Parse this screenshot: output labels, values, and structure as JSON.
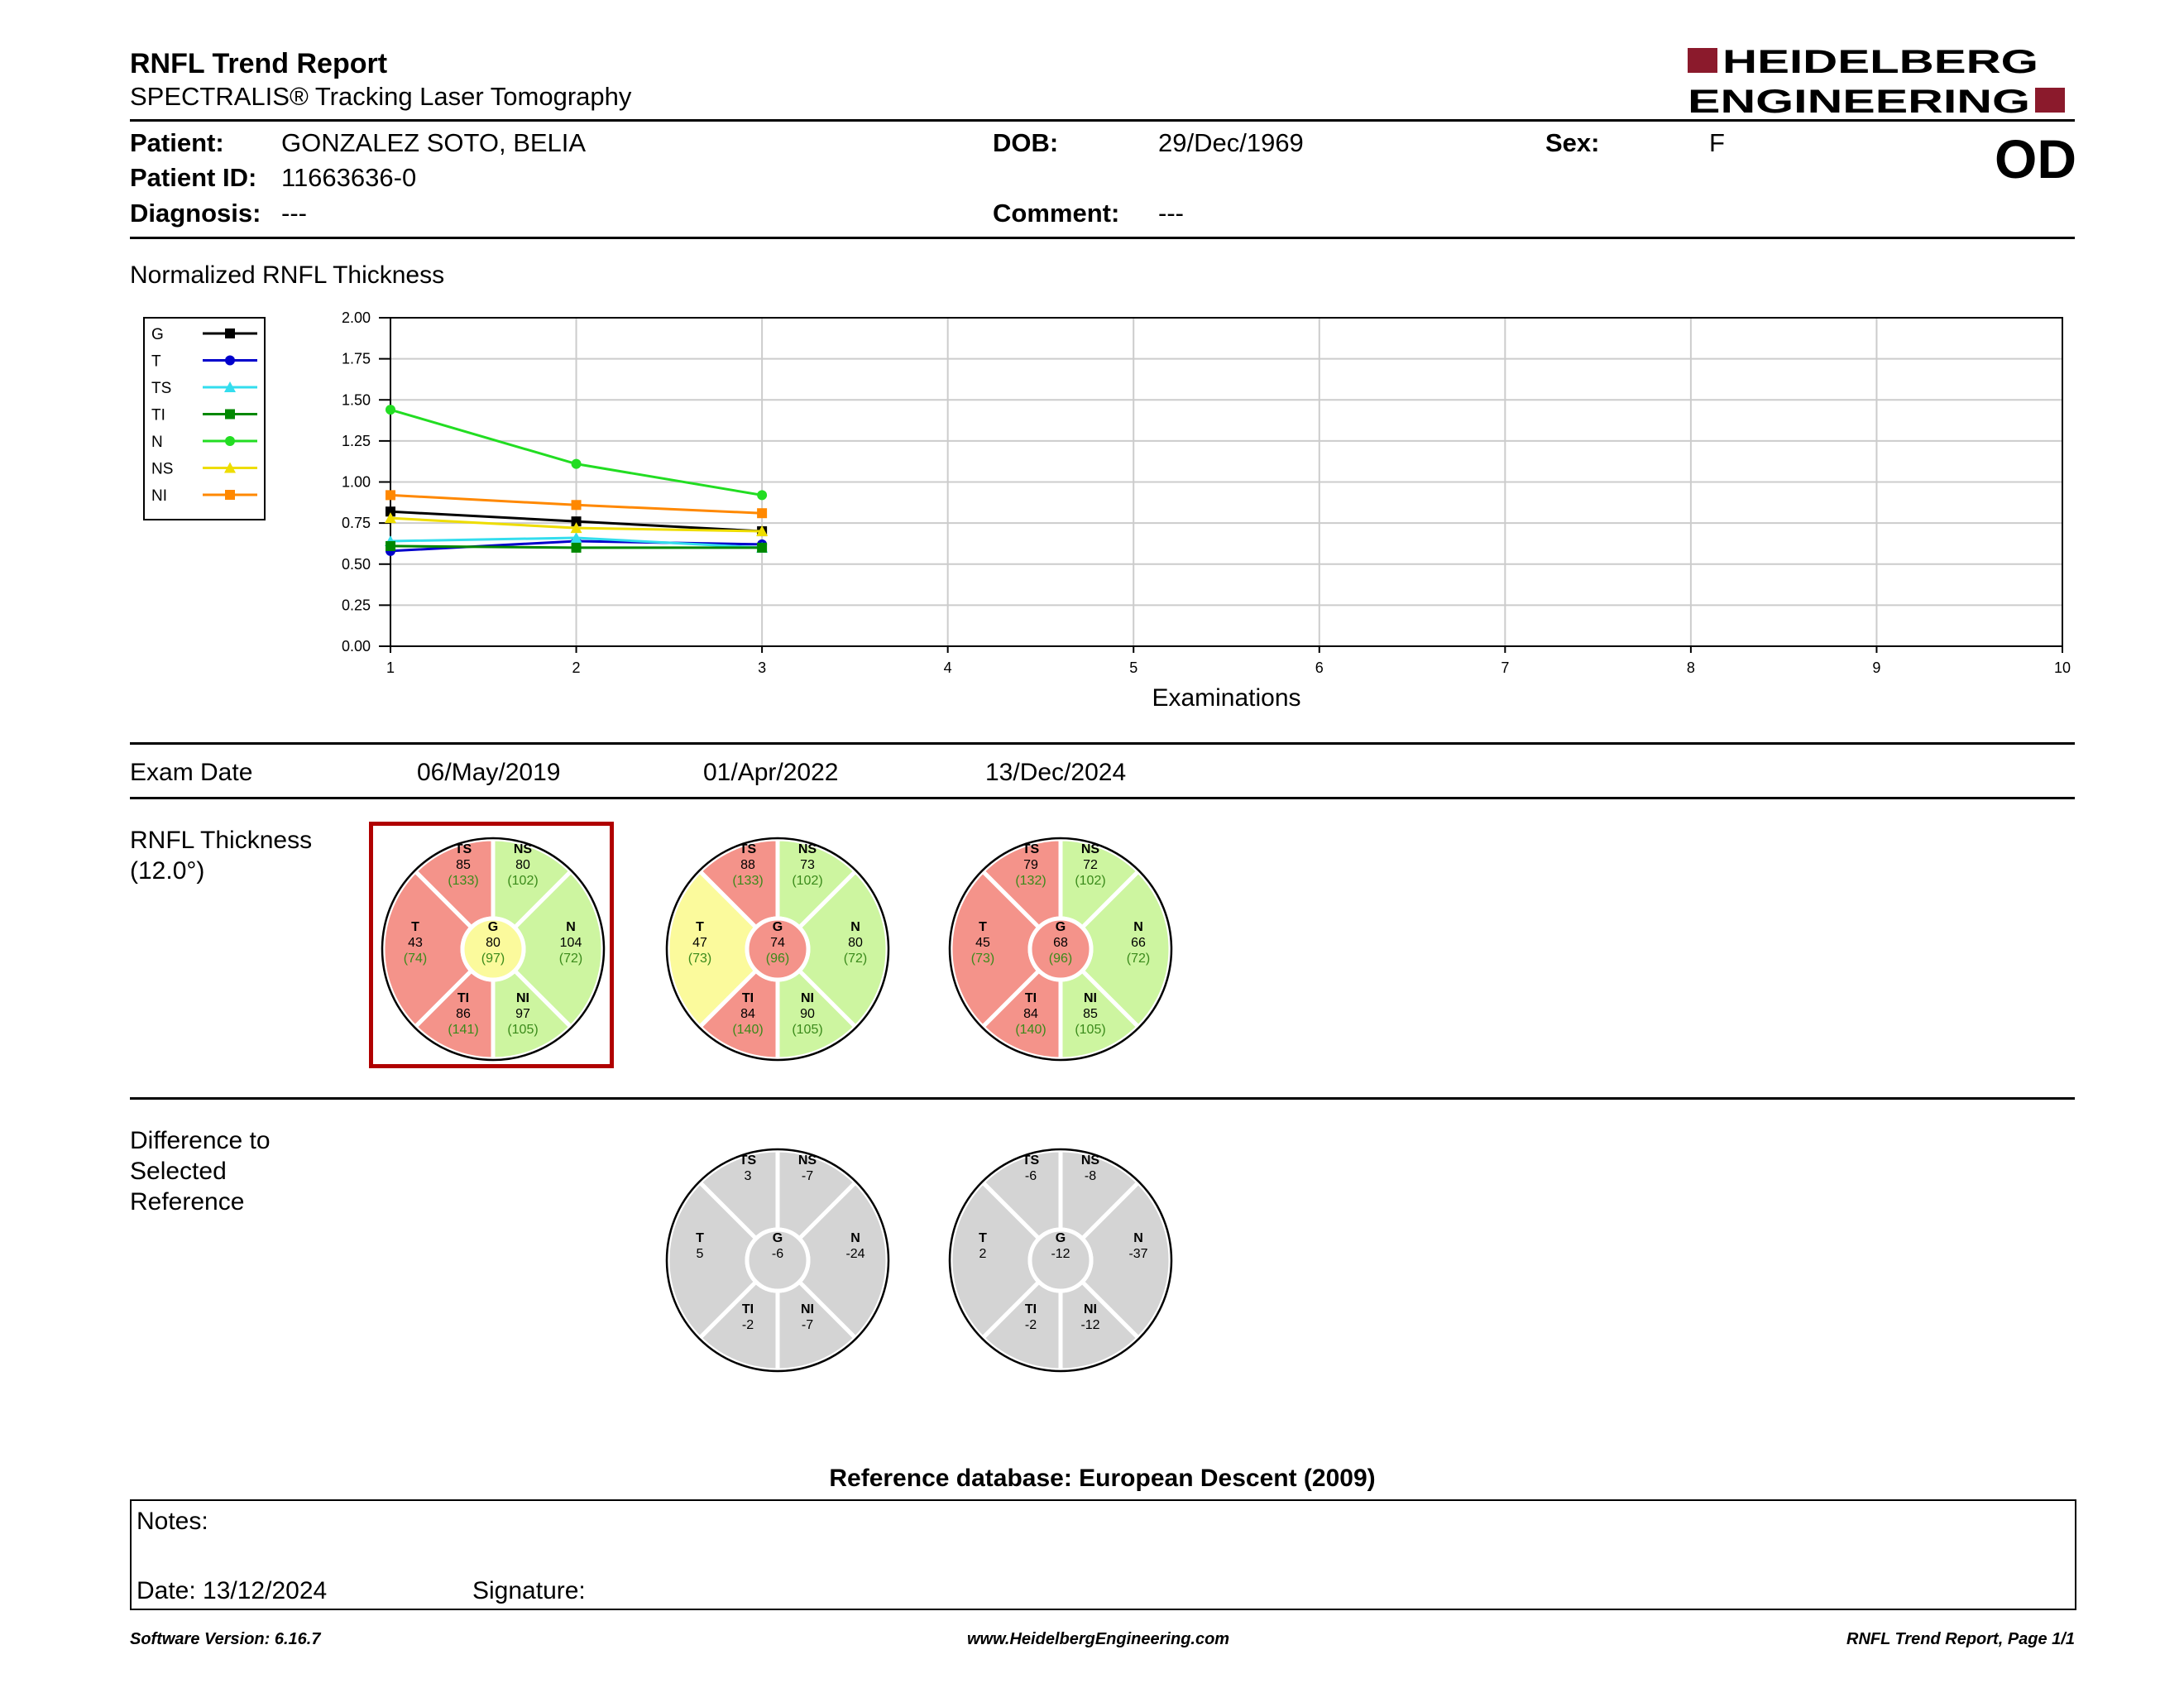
{
  "header": {
    "title": "RNFL Trend Report",
    "subtitle": "SPECTRALIS® Tracking Laser Tomography",
    "logo_line1": "HEIDELBERG",
    "logo_line2": "ENGINEERING",
    "brand_color": "#8b1a2c",
    "eye": "OD"
  },
  "patient": {
    "patient_label": "Patient:",
    "patient_value": "GONZALEZ SOTO, BELIA",
    "id_label": "Patient ID:",
    "id_value": "11663636-0",
    "diag_label": "Diagnosis:",
    "diag_value": "---",
    "dob_label": "DOB:",
    "dob_value": "29/Dec/1969",
    "comment_label": "Comment:",
    "comment_value": "---",
    "sex_label": "Sex:",
    "sex_value": "F"
  },
  "chart_data": {
    "type": "line",
    "title": "Normalized RNFL Thickness",
    "xlabel": "Examinations",
    "ylabel": "",
    "xlim": [
      1,
      10
    ],
    "ylim": [
      0,
      2
    ],
    "x_ticks": [
      "1",
      "2",
      "3",
      "4",
      "5",
      "6",
      "7",
      "8",
      "9",
      "10"
    ],
    "y_ticks": [
      "0.00",
      "0.25",
      "0.50",
      "0.75",
      "1.00",
      "1.25",
      "1.50",
      "1.75",
      "2.00"
    ],
    "grid": true,
    "legend_position": "left",
    "x": [
      1,
      2,
      3
    ],
    "series": [
      {
        "name": "G",
        "color": "#000000",
        "marker": "square",
        "values": [
          0.82,
          0.76,
          0.7
        ]
      },
      {
        "name": "T",
        "color": "#0000cc",
        "marker": "circle",
        "values": [
          0.58,
          0.64,
          0.62
        ]
      },
      {
        "name": "TS",
        "color": "#33ddee",
        "marker": "triangle",
        "values": [
          0.64,
          0.66,
          0.6
        ]
      },
      {
        "name": "TI",
        "color": "#008800",
        "marker": "square",
        "values": [
          0.61,
          0.6,
          0.6
        ]
      },
      {
        "name": "N",
        "color": "#22dd22",
        "marker": "circle",
        "values": [
          1.44,
          1.11,
          0.92
        ]
      },
      {
        "name": "NS",
        "color": "#eedd00",
        "marker": "triangle",
        "values": [
          0.78,
          0.72,
          0.7
        ]
      },
      {
        "name": "NI",
        "color": "#ff8800",
        "marker": "square",
        "values": [
          0.92,
          0.86,
          0.81
        ]
      }
    ]
  },
  "exams": {
    "label": "Exam Date",
    "dates": [
      "06/May/2019",
      "01/Apr/2022",
      "13/Dec/2024"
    ]
  },
  "thickness": {
    "label_line1": "RNFL Thickness",
    "label_line2": "(12.0°)",
    "colors": {
      "red": "#f4938a",
      "green": "#cdf5a0",
      "yellow": "#fbfa9c",
      "ref_text": "#3a8a1a"
    },
    "circles": [
      {
        "TS": {
          "v": "85",
          "r": "(133)",
          "c": "red"
        },
        "NS": {
          "v": "80",
          "r": "(102)",
          "c": "green"
        },
        "T": {
          "v": "43",
          "r": "(74)",
          "c": "red"
        },
        "N": {
          "v": "104",
          "r": "(72)",
          "c": "green"
        },
        "TI": {
          "v": "86",
          "r": "(141)",
          "c": "red"
        },
        "NI": {
          "v": "97",
          "r": "(105)",
          "c": "green"
        },
        "G": {
          "v": "80",
          "r": "(97)",
          "c": "yellow"
        }
      },
      {
        "TS": {
          "v": "88",
          "r": "(133)",
          "c": "red"
        },
        "NS": {
          "v": "73",
          "r": "(102)",
          "c": "green"
        },
        "T": {
          "v": "47",
          "r": "(73)",
          "c": "yellow"
        },
        "N": {
          "v": "80",
          "r": "(72)",
          "c": "green"
        },
        "TI": {
          "v": "84",
          "r": "(140)",
          "c": "red"
        },
        "NI": {
          "v": "90",
          "r": "(105)",
          "c": "green"
        },
        "G": {
          "v": "74",
          "r": "(96)",
          "c": "red"
        }
      },
      {
        "TS": {
          "v": "79",
          "r": "(132)",
          "c": "red"
        },
        "NS": {
          "v": "72",
          "r": "(102)",
          "c": "green"
        },
        "T": {
          "v": "45",
          "r": "(73)",
          "c": "red"
        },
        "N": {
          "v": "66",
          "r": "(72)",
          "c": "green"
        },
        "TI": {
          "v": "84",
          "r": "(140)",
          "c": "red"
        },
        "NI": {
          "v": "85",
          "r": "(105)",
          "c": "green"
        },
        "G": {
          "v": "68",
          "r": "(96)",
          "c": "red"
        }
      }
    ]
  },
  "difference": {
    "label_line1": "Difference to",
    "label_line2": "Selected",
    "label_line3": "Reference",
    "circles": [
      {
        "TS": "3",
        "NS": "-7",
        "T": "5",
        "N": "-24",
        "TI": "-2",
        "NI": "-7",
        "G": "-6"
      },
      {
        "TS": "-6",
        "NS": "-8",
        "T": "2",
        "N": "-37",
        "TI": "-2",
        "NI": "-12",
        "G": "-12"
      }
    ]
  },
  "reference_db": "Reference database: European Descent (2009)",
  "notes": {
    "label": "Notes:",
    "date_label": "Date: 13/12/2024",
    "signature_label": "Signature:"
  },
  "footer": {
    "left": "Software Version: 6.16.7",
    "center": "www.HeidelbergEngineering.com",
    "right": "RNFL Trend Report, Page 1/1"
  }
}
